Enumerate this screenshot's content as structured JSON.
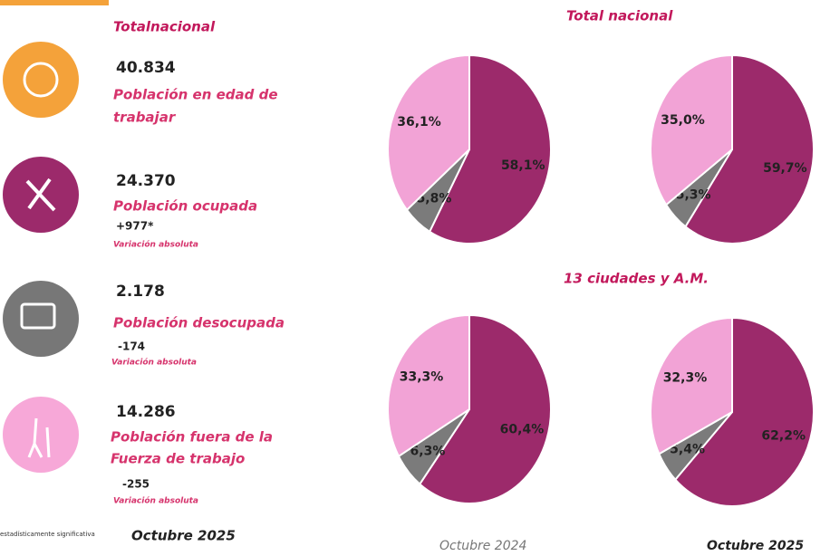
{
  "panel": {
    "title": "Totalnacional",
    "items": [
      {
        "value": "40.834",
        "label": [
          "Población en edad de",
          "trabajar"
        ]
      },
      {
        "value": "24.370",
        "label": [
          "Población ocupada"
        ],
        "change": "+977*",
        "note": "Variación absoluta"
      },
      {
        "value": "2.178",
        "label": [
          "Población desocupada"
        ],
        "change": "-174",
        "note": "Variación absoluta"
      },
      {
        "value": "14.286",
        "label": [
          "Población fuera de la",
          "Fuerza de trabajo"
        ],
        "change": "-255",
        "note": "Variación absoluta"
      }
    ],
    "footnote": "estadísticamente significativa",
    "period": "Octubre 2025"
  },
  "row_titles": [
    "Total nacional",
    "13 ciudades y A.M."
  ],
  "column_labels": [
    "Octubre 2024",
    "Octubre 2025"
  ],
  "chart_data": [
    {
      "type": "pie",
      "values": [
        58.1,
        5.8,
        36.1
      ],
      "value_labels": [
        "58,1%",
        "5,8%",
        "36,1%"
      ],
      "colors": [
        "#9c2a6b",
        "#7b7b7b",
        "#f2a3d6"
      ]
    },
    {
      "type": "pie",
      "values": [
        59.7,
        5.3,
        35.0
      ],
      "value_labels": [
        "59,7%",
        "5,3%",
        "35,0%"
      ],
      "colors": [
        "#9c2a6b",
        "#7b7b7b",
        "#f2a3d6"
      ]
    },
    {
      "type": "pie",
      "values": [
        60.4,
        6.3,
        33.3
      ],
      "value_labels": [
        "60,4%",
        "6,3%",
        "33,3%"
      ],
      "colors": [
        "#9c2a6b",
        "#7b7b7b",
        "#f2a3d6"
      ]
    },
    {
      "type": "pie",
      "values": [
        62.2,
        5.4,
        32.3
      ],
      "value_labels": [
        "62,2%",
        "5,4%",
        "32,3%"
      ],
      "colors": [
        "#9c2a6b",
        "#7b7b7b",
        "#f2a3d6"
      ]
    }
  ]
}
